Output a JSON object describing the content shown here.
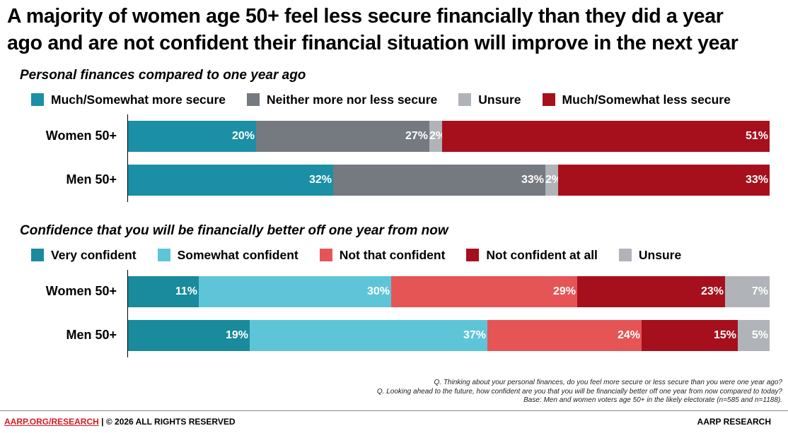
{
  "title_line1": "A majority of women age 50+ feel less secure financially than they did a year",
  "title_line2": "ago and are not confident their financial situation will improve in the next year",
  "chart_data": [
    {
      "type": "bar",
      "orientation": "horizontal",
      "stacked": true,
      "title": "Personal finances compared to one year ago",
      "categories": [
        "Women 50+",
        "Men 50+"
      ],
      "series": [
        {
          "name": "Much/Somewhat more secure",
          "values": [
            20,
            32
          ],
          "color": "#1b8fa5"
        },
        {
          "name": "Neither more nor less secure",
          "values": [
            27,
            33
          ],
          "color": "#757a80"
        },
        {
          "name": "Unsure",
          "values": [
            2,
            2
          ],
          "color": "#b0b3b8"
        },
        {
          "name": "Much/Somewhat less secure",
          "values": [
            51,
            33
          ],
          "color": "#a6101c"
        }
      ],
      "value_suffix": "%",
      "xlim": [
        0,
        100
      ]
    },
    {
      "type": "bar",
      "orientation": "horizontal",
      "stacked": true,
      "title": "Confidence that you will be financially better off one year from now",
      "categories": [
        "Women 50+",
        "Men 50+"
      ],
      "series": [
        {
          "name": "Very confident",
          "values": [
            11,
            19
          ],
          "color": "#1a8a9d"
        },
        {
          "name": "Somewhat confident",
          "values": [
            30,
            37
          ],
          "color": "#5ec5d9"
        },
        {
          "name": "Not that confident",
          "values": [
            29,
            24
          ],
          "color": "#e55556"
        },
        {
          "name": "Not confident at all",
          "values": [
            23,
            15
          ],
          "color": "#a6101c"
        },
        {
          "name": "Unsure",
          "values": [
            7,
            5
          ],
          "color": "#b0b3b8"
        }
      ],
      "value_suffix": "%",
      "xlim": [
        0,
        100
      ]
    }
  ],
  "notes": {
    "q1": "Q. Thinking about your personal finances, do you feel more secure or less secure than you were one year ago?",
    "q2": "Q. Looking ahead to the future, how confident are you that you will be financially better off one year from now compared to today?",
    "base": "Base: Men and women voters age 50+ in the likely electorate (n=585 and n=1188)."
  },
  "footer": {
    "link": "AARP.ORG/RESEARCH",
    "copyright": " | © 2026 ALL RIGHTS RESERVED",
    "brand": "AARP RESEARCH"
  }
}
